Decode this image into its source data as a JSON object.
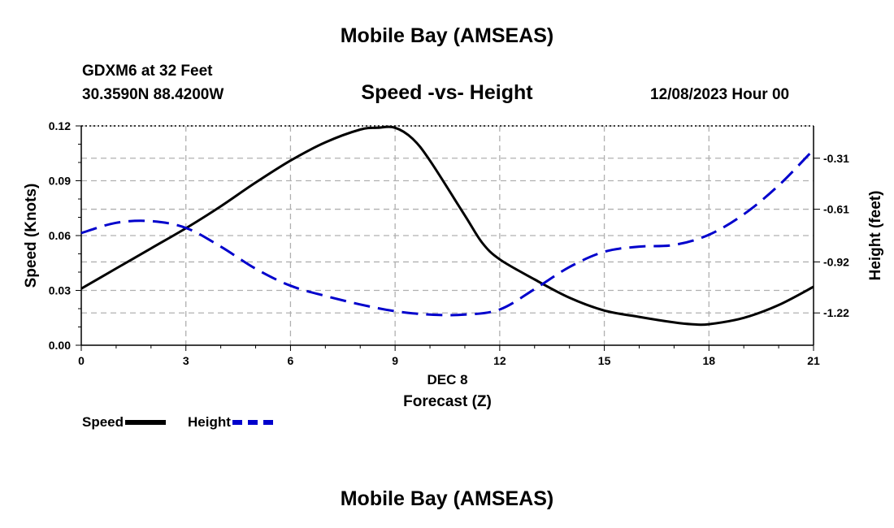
{
  "header": {
    "title": "Mobile Bay (AMSEAS)",
    "station": "GDXM6 at 32 Feet",
    "coords": "30.3590N  88.4200W",
    "subtitle": "Speed -vs- Height",
    "datestamp": "12/08/2023 Hour 00"
  },
  "footer": {
    "title": "Mobile Bay (AMSEAS)"
  },
  "chart_data": {
    "type": "line",
    "title": "Speed -vs- Height",
    "xlabel": "DEC 8",
    "xlabel2": "Forecast (Z)",
    "ylabel": "Speed (Knots)",
    "y2label": "Height (feet)",
    "xlim": [
      0,
      21
    ],
    "ylim": [
      0,
      0.12
    ],
    "y2lim": [
      -1.41,
      -0.12
    ],
    "grid": true,
    "x_ticks": [
      0,
      3,
      6,
      9,
      12,
      15,
      18,
      21
    ],
    "x_tick_labels": [
      "0",
      "3",
      "6",
      "9",
      "12",
      "15",
      "18",
      "21"
    ],
    "y_ticks": [
      0,
      0.03,
      0.06,
      0.09,
      0.12
    ],
    "y_tick_labels": [
      "0.00",
      "0.03",
      "0.06",
      "0.09",
      "0.12"
    ],
    "y2_ticks": [
      -0.31,
      -0.61,
      -0.92,
      -1.22
    ],
    "y2_tick_labels": [
      "-0.31",
      "-0.61",
      "-0.92",
      "-1.22"
    ],
    "colors": {
      "speed": "#000000",
      "height": "#0000cc",
      "grid": "#b0b0b0"
    },
    "legend": [
      {
        "name": "Speed",
        "color": "#000000",
        "style": "solid"
      },
      {
        "name": "Height",
        "color": "#0000cc",
        "style": "dashed"
      }
    ],
    "series": [
      {
        "name": "Speed",
        "axis": "left",
        "x": [
          0,
          1,
          2,
          3,
          4,
          5,
          6,
          7,
          8,
          8.5,
          9,
          9.5,
          10,
          11,
          11.5,
          12,
          13,
          14,
          15,
          16,
          17,
          17.5,
          18,
          19,
          20,
          21
        ],
        "values": [
          0.031,
          0.042,
          0.053,
          0.064,
          0.076,
          0.089,
          0.101,
          0.111,
          0.118,
          0.119,
          0.119,
          0.113,
          0.101,
          0.071,
          0.056,
          0.047,
          0.036,
          0.026,
          0.019,
          0.0155,
          0.0125,
          0.0115,
          0.0115,
          0.015,
          0.022,
          0.032
        ]
      },
      {
        "name": "Height",
        "axis": "right",
        "x": [
          0,
          1,
          2,
          3,
          4,
          5,
          6,
          7,
          8,
          9,
          10,
          11,
          12,
          13,
          14,
          15,
          16,
          17,
          18,
          19,
          20,
          21
        ],
        "values": [
          -0.75,
          -0.69,
          -0.68,
          -0.72,
          -0.83,
          -0.96,
          -1.06,
          -1.12,
          -1.17,
          -1.21,
          -1.23,
          -1.23,
          -1.2,
          -1.08,
          -0.95,
          -0.86,
          -0.83,
          -0.82,
          -0.76,
          -0.64,
          -0.47,
          -0.26
        ]
      }
    ]
  }
}
